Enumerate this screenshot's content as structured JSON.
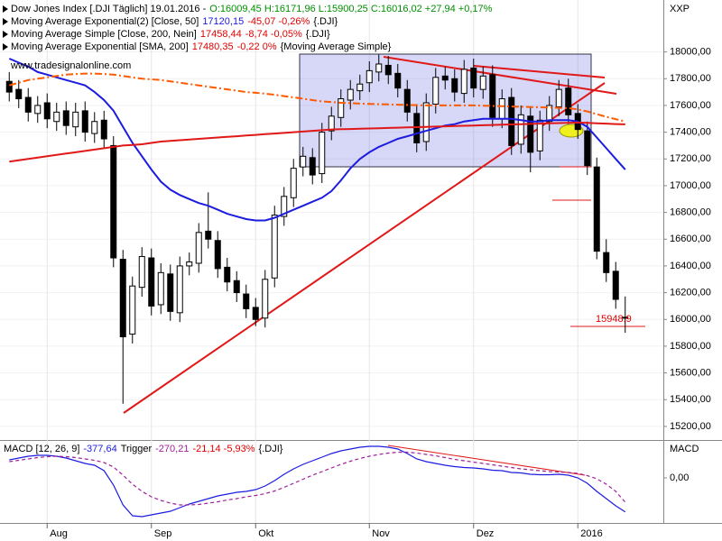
{
  "header": {
    "watermark": "www.tradesignalonline.com"
  },
  "chart_data": [
    {
      "type": "candlestick",
      "title": "Dow Jones Index [.DJI  Täglich] 19.01.2016 -",
      "subtitle": "O:16009,45 H:16171,96 L:15900,25 C:16016,02 +27,94 +0,17%",
      "y_axis_label": "XXP",
      "annotation": "15948,9",
      "categories": [
        null,
        null,
        null,
        null,
        "Aug",
        null,
        null,
        null,
        null,
        null,
        null,
        null,
        null,
        null,
        null,
        "Sep",
        null,
        null,
        null,
        null,
        null,
        null,
        null,
        null,
        null,
        null,
        "Okt",
        null,
        null,
        null,
        null,
        null,
        null,
        null,
        null,
        null,
        null,
        null,
        "Nov",
        null,
        null,
        null,
        null,
        null,
        null,
        null,
        null,
        null,
        null,
        "Dez",
        null,
        null,
        null,
        null,
        null,
        null,
        null,
        null,
        null,
        null,
        "2016",
        null,
        null,
        null,
        null,
        null
      ],
      "open": [
        17780,
        17720,
        17660,
        17540,
        17620,
        17480,
        17560,
        17440,
        17560,
        17390,
        17490,
        17300,
        16450,
        15890,
        16240,
        16460,
        16110,
        16340,
        16050,
        16400,
        16420,
        16660,
        16590,
        16390,
        16290,
        16190,
        16090,
        16010,
        16310,
        16770,
        16910,
        17140,
        17210,
        17090,
        17410,
        17510,
        17640,
        17710,
        17770,
        17850,
        17900,
        17840,
        17720,
        17540,
        17330,
        17610,
        17820,
        17800,
        17690,
        17880,
        17720,
        17830,
        17500,
        17660,
        17310,
        17520,
        17260,
        17480,
        17590,
        17730,
        17540,
        17410,
        17140,
        16500,
        16360,
        16009.45
      ],
      "high": [
        17850,
        17790,
        17730,
        17670,
        17690,
        17620,
        17630,
        17620,
        17630,
        17550,
        17560,
        17370,
        16520,
        16320,
        16540,
        16530,
        16420,
        16410,
        16470,
        16500,
        16720,
        16950,
        16660,
        16460,
        16360,
        16260,
        16160,
        16370,
        16850,
        16990,
        17200,
        17290,
        17280,
        17470,
        17590,
        17720,
        17790,
        17830,
        17930,
        17980,
        17970,
        17910,
        17790,
        17610,
        17690,
        17880,
        17890,
        17870,
        17940,
        17950,
        17890,
        17900,
        17720,
        17730,
        17600,
        17590,
        17560,
        17670,
        17790,
        17800,
        17610,
        17480,
        17210,
        16600,
        16430,
        16171.96
      ],
      "low": [
        17630,
        17580,
        17480,
        17470,
        17430,
        17410,
        17380,
        17370,
        17330,
        17320,
        17280,
        16390,
        15370,
        15820,
        16170,
        16030,
        16040,
        15990,
        15980,
        16330,
        16350,
        16530,
        16310,
        16210,
        16130,
        16010,
        15950,
        15940,
        16240,
        16700,
        16840,
        17070,
        17010,
        17020,
        17340,
        17440,
        17570,
        17640,
        17700,
        17780,
        17760,
        17660,
        17480,
        17250,
        17260,
        17540,
        17720,
        17630,
        17620,
        17660,
        17650,
        17440,
        17430,
        17230,
        17240,
        17100,
        17190,
        17410,
        17520,
        17460,
        17350,
        17080,
        16450,
        16280,
        16080,
        15900.25
      ],
      "close": [
        17700,
        17650,
        17550,
        17600,
        17500,
        17550,
        17450,
        17550,
        17400,
        17480,
        17350,
        16460,
        15870,
        16250,
        16470,
        16100,
        16350,
        16060,
        16400,
        16430,
        16650,
        16600,
        16380,
        16280,
        16200,
        16080,
        16000,
        16300,
        16780,
        16920,
        17130,
        17220,
        17080,
        17400,
        17520,
        17650,
        17720,
        17760,
        17860,
        17910,
        17830,
        17730,
        17550,
        17320,
        17620,
        17810,
        17790,
        17700,
        17870,
        17730,
        17820,
        17510,
        17650,
        17300,
        17530,
        17250,
        17490,
        17600,
        17720,
        17530,
        17420,
        17150,
        16510,
        16350,
        16150,
        16016.02
      ],
      "up_color": "#ffffff",
      "down_color": "#000000",
      "series": [
        {
          "name": "Moving Average Exponential(2) [Close, 50]",
          "legend_value": "17120,15",
          "legend_change": "-45,07 -0,26%",
          "legend_source": "{.DJI}",
          "color": "#1c1ce0",
          "dash": false,
          "values": [
            17950,
            17920,
            17890,
            17850,
            17830,
            17810,
            17790,
            17770,
            17750,
            17700,
            17640,
            17560,
            17440,
            17320,
            17220,
            17120,
            17030,
            16970,
            16930,
            16900,
            16870,
            16850,
            16820,
            16790,
            16770,
            16750,
            16740,
            16740,
            16760,
            16790,
            16820,
            16850,
            16880,
            16910,
            16960,
            17040,
            17130,
            17200,
            17250,
            17290,
            17320,
            17350,
            17370,
            17390,
            17410,
            17430,
            17450,
            17460,
            17480,
            17490,
            17500,
            17500,
            17500,
            17500,
            17490,
            17480,
            17480,
            17490,
            17490,
            17490,
            17480,
            17440,
            17360,
            17280,
            17200,
            17120.15
          ]
        },
        {
          "name": "Moving Average Simple [Close, 200, Nein]",
          "legend_value": "17458,44",
          "legend_change": "-8,74 -0,05%",
          "legend_source": "{.DJI}",
          "color": "#e01818",
          "dash": false,
          "values": [
            17180,
            17190,
            17200,
            17210,
            17220,
            17230,
            17240,
            17250,
            17260,
            17270,
            17280,
            17290,
            17300,
            17305,
            17310,
            17320,
            17330,
            17335,
            17340,
            17345,
            17350,
            17355,
            17360,
            17365,
            17370,
            17375,
            17380,
            17385,
            17390,
            17395,
            17400,
            17405,
            17410,
            17415,
            17420,
            17422,
            17424,
            17426,
            17428,
            17430,
            17432,
            17434,
            17436,
            17438,
            17440,
            17442,
            17444,
            17446,
            17448,
            17450,
            17452,
            17454,
            17456,
            17458,
            17460,
            17462,
            17464,
            17466,
            17468,
            17470,
            17472,
            17470,
            17467,
            17464,
            17461,
            17458.44
          ]
        },
        {
          "name": "Moving Average Exponential [SMA, 200]",
          "legend_value": "17480,35",
          "legend_change": "-0,22 0%",
          "legend_source": "{Moving Average Simple}",
          "color": "#ff5a00",
          "dash": true,
          "values": [
            17750,
            17770,
            17790,
            17800,
            17810,
            17820,
            17830,
            17835,
            17838,
            17838,
            17835,
            17830,
            17820,
            17810,
            17800,
            17795,
            17790,
            17780,
            17770,
            17760,
            17750,
            17740,
            17730,
            17720,
            17710,
            17700,
            17695,
            17688,
            17680,
            17670,
            17660,
            17650,
            17640,
            17630,
            17625,
            17620,
            17617,
            17614,
            17612,
            17610,
            17608,
            17606,
            17604,
            17602,
            17600,
            17600,
            17600,
            17600,
            17600,
            17600,
            17598,
            17596,
            17594,
            17592,
            17590,
            17588,
            17586,
            17584,
            17582,
            17580,
            17570,
            17555,
            17535,
            17515,
            17497,
            17480.35
          ]
        }
      ],
      "ylim": [
        15105,
        18375
      ],
      "yticks": [
        {
          "value": 15200,
          "label": "15200,00"
        },
        {
          "value": 15400,
          "label": "15400,00"
        },
        {
          "value": 15600,
          "label": "15600,00"
        },
        {
          "value": 15800,
          "label": "15800,00"
        },
        {
          "value": 16000,
          "label": "16000,00"
        },
        {
          "value": 16200,
          "label": "16200,00"
        },
        {
          "value": 16400,
          "label": "16400,00"
        },
        {
          "value": 16600,
          "label": "16600,00"
        },
        {
          "value": 16800,
          "label": "16800,00"
        },
        {
          "value": 17000,
          "label": "17000,00"
        },
        {
          "value": 17200,
          "label": "17200,00"
        },
        {
          "value": 17400,
          "label": "17400,00"
        },
        {
          "value": 17600,
          "label": "17600,00"
        },
        {
          "value": 17800,
          "label": "17800,00"
        },
        {
          "value": 18000,
          "label": "18000,00"
        }
      ],
      "grid": true
    },
    {
      "type": "line",
      "y_axis_label": "MACD",
      "legend_change": "-21,14 -5,93%",
      "legend_source": "{.DJI}",
      "series": [
        {
          "name": "MACD [12, 26, 9]",
          "legend_value": "-377,64",
          "color": "#1c1ce0",
          "dash": false,
          "values": [
            200,
            220,
            240,
            250,
            250,
            240,
            220,
            190,
            160,
            140,
            80,
            -80,
            -300,
            -420,
            -430,
            -410,
            -390,
            -370,
            -330,
            -290,
            -260,
            -230,
            -200,
            -180,
            -160,
            -150,
            -130,
            -90,
            -30,
            40,
            100,
            150,
            190,
            230,
            270,
            300,
            320,
            340,
            350,
            350,
            340,
            320,
            270,
            210,
            180,
            160,
            140,
            125,
            115,
            110,
            100,
            85,
            80,
            60,
            55,
            40,
            35,
            35,
            40,
            30,
            0,
            -60,
            -150,
            -230,
            -310,
            -377.64
          ]
        },
        {
          "name": "Trigger",
          "legend_value": "-270,21",
          "color": "#a0209c",
          "dash": true,
          "values": [
            180,
            195,
            210,
            225,
            235,
            240,
            235,
            225,
            210,
            195,
            170,
            120,
            30,
            -70,
            -150,
            -210,
            -250,
            -280,
            -300,
            -300,
            -295,
            -280,
            -265,
            -245,
            -230,
            -210,
            -195,
            -175,
            -145,
            -105,
            -60,
            -15,
            30,
            70,
            110,
            150,
            185,
            215,
            240,
            260,
            275,
            285,
            285,
            275,
            260,
            245,
            225,
            205,
            190,
            175,
            160,
            145,
            130,
            115,
            100,
            90,
            80,
            70,
            65,
            60,
            50,
            25,
            -10,
            -70,
            -150,
            -270.21
          ]
        }
      ],
      "ylim": [
        -500,
        400
      ],
      "yticks": [
        {
          "value": 0,
          "label": "0,00"
        }
      ],
      "grid": false
    }
  ]
}
